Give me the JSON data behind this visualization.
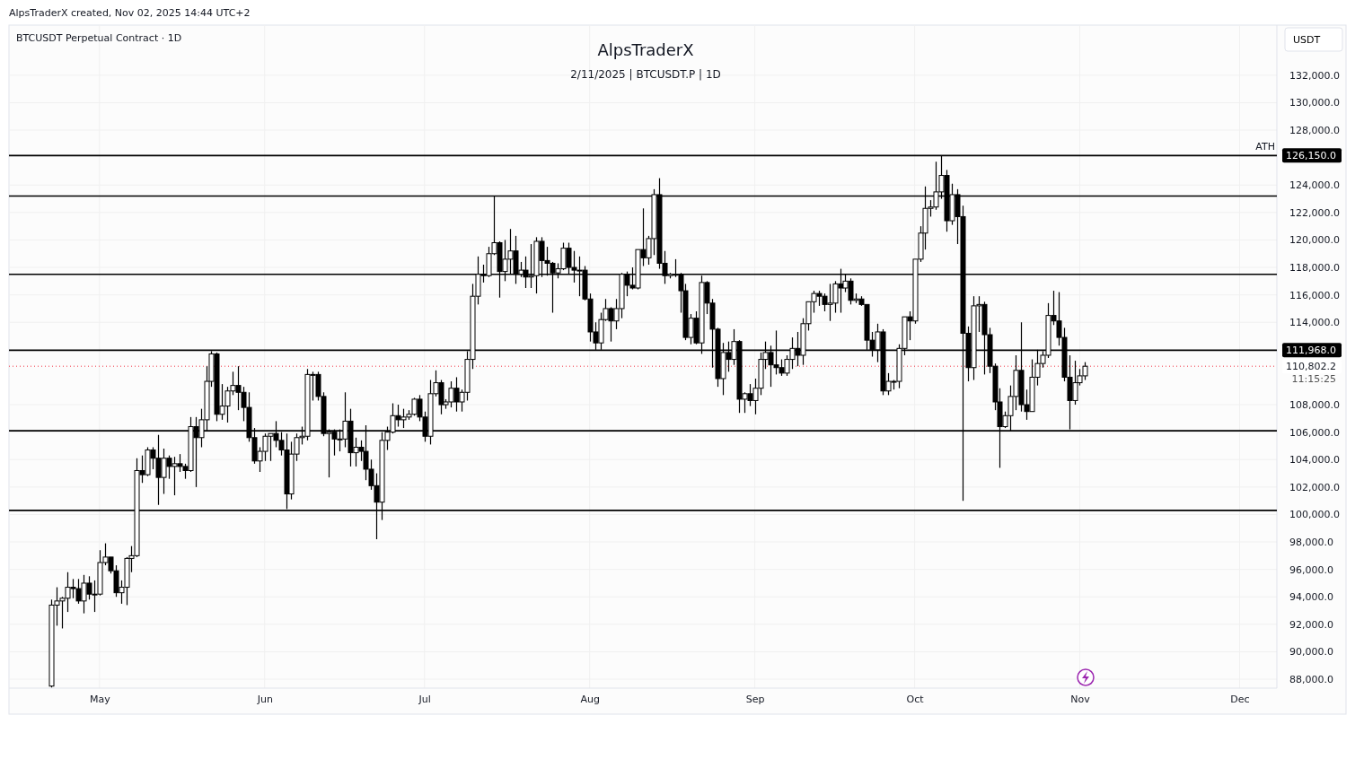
{
  "chart_data": {
    "type": "candlestick",
    "title": "AlpsTraderX",
    "subtitle": "2/11/2025 | BTCUSDT.P | 1D",
    "ylabel": "USDT",
    "annotations": [
      "AlpsTraderX created, Nov 02, 2025 14:44 UTC+2",
      "BTCUSDT Perpetual Contract · 1D",
      "ATH",
      "11:15:25"
    ],
    "xlim": [
      "2025-04-14",
      "2025-12-08"
    ],
    "xticks": [
      {
        "value": "2025-05-01",
        "label": "May"
      },
      {
        "value": "2025-06-01",
        "label": "Jun"
      },
      {
        "value": "2025-07-01",
        "label": "Jul"
      },
      {
        "value": "2025-08-01",
        "label": "Aug"
      },
      {
        "value": "2025-09-01",
        "label": "Sep"
      },
      {
        "value": "2025-10-01",
        "label": "Oct"
      },
      {
        "value": "2025-11-01",
        "label": "Nov"
      },
      {
        "value": "2025-12-01",
        "label": "Dec"
      }
    ],
    "ylim": [
      87350,
      135650
    ],
    "yticks": [
      {
        "value": 88000,
        "label": "88,000.0"
      },
      {
        "value": 90000,
        "label": "90,000.0"
      },
      {
        "value": 92000,
        "label": "92,000.0"
      },
      {
        "value": 94000,
        "label": "94,000.0"
      },
      {
        "value": 96000,
        "label": "96,000.0"
      },
      {
        "value": 98000,
        "label": "98,000.0"
      },
      {
        "value": 100000,
        "label": "100,000.0"
      },
      {
        "value": 102000,
        "label": "102,000.0"
      },
      {
        "value": 104000,
        "label": "104,000.0"
      },
      {
        "value": 106000,
        "label": "106,000.0"
      },
      {
        "value": 108000,
        "label": "108,000.0"
      },
      {
        "value": 114000,
        "label": "114,000.0"
      },
      {
        "value": 116000,
        "label": "116,000.0"
      },
      {
        "value": 118000,
        "label": "118,000.0"
      },
      {
        "value": 120000,
        "label": "120,000.0"
      },
      {
        "value": 122000,
        "label": "122,000.0"
      },
      {
        "value": 124000,
        "label": "124,000.0"
      },
      {
        "value": 128000,
        "label": "128,000.0"
      },
      {
        "value": 130000,
        "label": "130,000.0"
      },
      {
        "value": 132000,
        "label": "132,000.0"
      }
    ],
    "grid": true,
    "ref_lines": [
      {
        "axis": "y",
        "value": 126150,
        "label": "126,150.0"
      },
      {
        "axis": "y",
        "value": 123200
      },
      {
        "axis": "y",
        "value": 117500
      },
      {
        "axis": "y",
        "value": 111968,
        "label": "111,968.0"
      },
      {
        "axis": "y",
        "value": 106100
      },
      {
        "axis": "y",
        "value": 100300
      },
      {
        "axis": "y",
        "value": 110802.2,
        "label": "110,802.2",
        "color": "#f23645",
        "line_style": "dotted"
      }
    ],
    "x": [
      "2025-04-22",
      "2025-04-23",
      "2025-04-24",
      "2025-04-25",
      "2025-04-26",
      "2025-04-27",
      "2025-04-28",
      "2025-04-29",
      "2025-04-30",
      "2025-05-01",
      "2025-05-02",
      "2025-05-03",
      "2025-05-04",
      "2025-05-05",
      "2025-05-06",
      "2025-05-07",
      "2025-05-08",
      "2025-05-09",
      "2025-05-10",
      "2025-05-11",
      "2025-05-12",
      "2025-05-13",
      "2025-05-14",
      "2025-05-15",
      "2025-05-16",
      "2025-05-17",
      "2025-05-18",
      "2025-05-19",
      "2025-05-20",
      "2025-05-21",
      "2025-05-22",
      "2025-05-23",
      "2025-05-24",
      "2025-05-25",
      "2025-05-26",
      "2025-05-27",
      "2025-05-28",
      "2025-05-29",
      "2025-05-30",
      "2025-05-31",
      "2025-06-01",
      "2025-06-02",
      "2025-06-03",
      "2025-06-04",
      "2025-06-05",
      "2025-06-06",
      "2025-06-07",
      "2025-06-08",
      "2025-06-09",
      "2025-06-10",
      "2025-06-11",
      "2025-06-12",
      "2025-06-13",
      "2025-06-14",
      "2025-06-15",
      "2025-06-16",
      "2025-06-17",
      "2025-06-18",
      "2025-06-19",
      "2025-06-20",
      "2025-06-21",
      "2025-06-22",
      "2025-06-23",
      "2025-06-24",
      "2025-06-25",
      "2025-06-26",
      "2025-06-27",
      "2025-06-28",
      "2025-06-29",
      "2025-06-30",
      "2025-07-01",
      "2025-07-02",
      "2025-07-03",
      "2025-07-04",
      "2025-07-05",
      "2025-07-06",
      "2025-07-07",
      "2025-07-08",
      "2025-07-09",
      "2025-07-10",
      "2025-07-11",
      "2025-07-12",
      "2025-07-13",
      "2025-07-14",
      "2025-07-15",
      "2025-07-16",
      "2025-07-17",
      "2025-07-18",
      "2025-07-19",
      "2025-07-20",
      "2025-07-21",
      "2025-07-22",
      "2025-07-23",
      "2025-07-24",
      "2025-07-25",
      "2025-07-26",
      "2025-07-27",
      "2025-07-28",
      "2025-07-29",
      "2025-07-30",
      "2025-07-31",
      "2025-08-01",
      "2025-08-02",
      "2025-08-03",
      "2025-08-04",
      "2025-08-05",
      "2025-08-06",
      "2025-08-07",
      "2025-08-08",
      "2025-08-09",
      "2025-08-10",
      "2025-08-11",
      "2025-08-12",
      "2025-08-13",
      "2025-08-14",
      "2025-08-15",
      "2025-08-16",
      "2025-08-17",
      "2025-08-18",
      "2025-08-19",
      "2025-08-20",
      "2025-08-21",
      "2025-08-22",
      "2025-08-23",
      "2025-08-24",
      "2025-08-25",
      "2025-08-26",
      "2025-08-27",
      "2025-08-28",
      "2025-08-29",
      "2025-08-30",
      "2025-08-31",
      "2025-09-01",
      "2025-09-02",
      "2025-09-03",
      "2025-09-04",
      "2025-09-05",
      "2025-09-06",
      "2025-09-07",
      "2025-09-08",
      "2025-09-09",
      "2025-09-10",
      "2025-09-11",
      "2025-09-12",
      "2025-09-13",
      "2025-09-14",
      "2025-09-15",
      "2025-09-16",
      "2025-09-17",
      "2025-09-18",
      "2025-09-19",
      "2025-09-20",
      "2025-09-21",
      "2025-09-22",
      "2025-09-23",
      "2025-09-24",
      "2025-09-25",
      "2025-09-26",
      "2025-09-27",
      "2025-09-28",
      "2025-09-29",
      "2025-09-30",
      "2025-10-01",
      "2025-10-02",
      "2025-10-03",
      "2025-10-04",
      "2025-10-05",
      "2025-10-06",
      "2025-10-07",
      "2025-10-08",
      "2025-10-09",
      "2025-10-10",
      "2025-10-11",
      "2025-10-12",
      "2025-10-13",
      "2025-10-14",
      "2025-10-15",
      "2025-10-16",
      "2025-10-17",
      "2025-10-18",
      "2025-10-19",
      "2025-10-20",
      "2025-10-21",
      "2025-10-22",
      "2025-10-23",
      "2025-10-24",
      "2025-10-25",
      "2025-10-26",
      "2025-10-27",
      "2025-10-28",
      "2025-10-29",
      "2025-10-30",
      "2025-10-31",
      "2025-11-01",
      "2025-11-02"
    ],
    "ohlc": [
      [
        87500,
        93800,
        87400,
        93400
      ],
      [
        93400,
        94700,
        91900,
        93700
      ],
      [
        93700,
        94000,
        91700,
        93900
      ],
      [
        93900,
        95800,
        92900,
        94700
      ],
      [
        94700,
        95300,
        93900,
        94600
      ],
      [
        94600,
        95300,
        93500,
        93700
      ],
      [
        93700,
        95600,
        92800,
        95000
      ],
      [
        95000,
        95500,
        93800,
        94200
      ],
      [
        94200,
        95200,
        92900,
        94200
      ],
      [
        94200,
        97400,
        94100,
        96500
      ],
      [
        96500,
        97900,
        96300,
        96900
      ],
      [
        96900,
        96900,
        95700,
        95900
      ],
      [
        95900,
        96300,
        94000,
        94300
      ],
      [
        94300,
        95200,
        93500,
        94700
      ],
      [
        94700,
        96900,
        93400,
        96800
      ],
      [
        96800,
        97700,
        95800,
        97000
      ],
      [
        97000,
        104100,
        96900,
        103200
      ],
      [
        103200,
        104300,
        102300,
        102900
      ],
      [
        102900,
        104900,
        102800,
        104700
      ],
      [
        104700,
        104900,
        103300,
        104100
      ],
      [
        104100,
        105800,
        100700,
        102700
      ],
      [
        102700,
        104800,
        101500,
        104100
      ],
      [
        104100,
        104300,
        102600,
        103500
      ],
      [
        103500,
        104200,
        101400,
        103700
      ],
      [
        103700,
        104400,
        103100,
        103500
      ],
      [
        103500,
        103700,
        102600,
        103200
      ],
      [
        103200,
        107100,
        103100,
        106400
      ],
      [
        106400,
        107100,
        102000,
        105600
      ],
      [
        105600,
        107700,
        104900,
        106900
      ],
      [
        106900,
        110800,
        106100,
        109700
      ],
      [
        109700,
        111900,
        109300,
        111700
      ],
      [
        111700,
        111800,
        106800,
        107300
      ],
      [
        107300,
        109500,
        106900,
        107900
      ],
      [
        107900,
        109300,
        106700,
        109000
      ],
      [
        109000,
        110400,
        108700,
        109400
      ],
      [
        109400,
        110800,
        107600,
        108900
      ],
      [
        108900,
        109300,
        106800,
        107800
      ],
      [
        107800,
        108900,
        105300,
        105600
      ],
      [
        105600,
        106300,
        103700,
        103900
      ],
      [
        103900,
        104900,
        103100,
        104600
      ],
      [
        104600,
        105900,
        103900,
        105700
      ],
      [
        105700,
        105900,
        103900,
        105900
      ],
      [
        105900,
        106800,
        104900,
        105400
      ],
      [
        105400,
        106000,
        104300,
        104700
      ],
      [
        104700,
        105900,
        100400,
        101500
      ],
      [
        101500,
        105300,
        101100,
        104400
      ],
      [
        104400,
        105900,
        103900,
        105600
      ],
      [
        105600,
        106400,
        105100,
        105700
      ],
      [
        105700,
        110600,
        105400,
        110200
      ],
      [
        110200,
        110400,
        108300,
        110200
      ],
      [
        110200,
        110400,
        108300,
        108600
      ],
      [
        108600,
        108900,
        105700,
        105900
      ],
      [
        105900,
        106200,
        102700,
        106000
      ],
      [
        106000,
        106200,
        104300,
        105500
      ],
      [
        105500,
        106200,
        104600,
        105500
      ],
      [
        105500,
        108900,
        104900,
        106800
      ],
      [
        106800,
        107700,
        103500,
        104500
      ],
      [
        104500,
        105600,
        103500,
        104900
      ],
      [
        104900,
        105400,
        103900,
        104600
      ],
      [
        104600,
        106500,
        102500,
        103300
      ],
      [
        103300,
        104000,
        101800,
        102100
      ],
      [
        102100,
        103000,
        98200,
        100900
      ],
      [
        100900,
        106000,
        99600,
        105400
      ],
      [
        105400,
        106400,
        104700,
        106000
      ],
      [
        106000,
        108100,
        105900,
        107200
      ],
      [
        107200,
        108000,
        106400,
        106900
      ],
      [
        106900,
        107700,
        106300,
        107100
      ],
      [
        107100,
        107600,
        106900,
        107300
      ],
      [
        107300,
        108500,
        107200,
        108400
      ],
      [
        108400,
        108700,
        106800,
        107100
      ],
      [
        107100,
        107500,
        105300,
        105700
      ],
      [
        105700,
        109800,
        105100,
        108800
      ],
      [
        108800,
        110500,
        108600,
        109600
      ],
      [
        109600,
        109800,
        107300,
        108000
      ],
      [
        108000,
        108400,
        107700,
        108200
      ],
      [
        108200,
        109700,
        107800,
        109200
      ],
      [
        109200,
        110000,
        107500,
        108200
      ],
      [
        108200,
        109100,
        107500,
        108900
      ],
      [
        108900,
        111900,
        108300,
        111300
      ],
      [
        111300,
        116800,
        110600,
        115900
      ],
      [
        115900,
        118800,
        115300,
        117500
      ],
      [
        117500,
        118200,
        116900,
        117400
      ],
      [
        117400,
        119500,
        117300,
        119000
      ],
      [
        119000,
        123200,
        118900,
        119800
      ],
      [
        119800,
        119900,
        115800,
        117700
      ],
      [
        117700,
        120000,
        117000,
        118600
      ],
      [
        118600,
        120800,
        117500,
        119200
      ],
      [
        119200,
        120300,
        116800,
        117500
      ],
      [
        117500,
        118400,
        117300,
        117800
      ],
      [
        117800,
        118800,
        116500,
        117300
      ],
      [
        117300,
        119700,
        116500,
        117400
      ],
      [
        117400,
        120200,
        116100,
        119900
      ],
      [
        119900,
        120200,
        117300,
        118500
      ],
      [
        118500,
        119500,
        117400,
        118300
      ],
      [
        118300,
        118400,
        114700,
        117600
      ],
      [
        117600,
        118300,
        117200,
        117900
      ],
      [
        117900,
        119800,
        117800,
        119400
      ],
      [
        119400,
        119800,
        117500,
        118000
      ],
      [
        118000,
        119200,
        116900,
        117800
      ],
      [
        117800,
        118800,
        115900,
        117800
      ],
      [
        117800,
        118100,
        115600,
        115700
      ],
      [
        115700,
        116100,
        112600,
        113300
      ],
      [
        113300,
        114000,
        112000,
        112500
      ],
      [
        112500,
        114700,
        112000,
        114200
      ],
      [
        114200,
        115700,
        114100,
        115000
      ],
      [
        115000,
        115100,
        112600,
        114100
      ],
      [
        114100,
        115700,
        113500,
        115000
      ],
      [
        115000,
        117600,
        114300,
        117500
      ],
      [
        117500,
        117700,
        115900,
        116700
      ],
      [
        116700,
        118000,
        116400,
        116500
      ],
      [
        116500,
        119300,
        116400,
        119300
      ],
      [
        119300,
        122300,
        118100,
        118700
      ],
      [
        118700,
        120300,
        118200,
        120100
      ],
      [
        120100,
        123700,
        118900,
        123300
      ],
      [
        123300,
        124500,
        117900,
        118300
      ],
      [
        118300,
        119200,
        116800,
        117400
      ],
      [
        117400,
        117600,
        117200,
        117500
      ],
      [
        117500,
        118600,
        117300,
        117500
      ],
      [
        117500,
        117600,
        114700,
        116300
      ],
      [
        116300,
        116800,
        112700,
        112900
      ],
      [
        112900,
        114600,
        112400,
        114300
      ],
      [
        114300,
        114800,
        112400,
        112500
      ],
      [
        112500,
        117400,
        111700,
        116900
      ],
      [
        116900,
        117000,
        114600,
        115400
      ],
      [
        115400,
        115700,
        110700,
        113500
      ],
      [
        113500,
        113600,
        109300,
        109900
      ],
      [
        109900,
        112500,
        108700,
        111800
      ],
      [
        111800,
        112600,
        110400,
        111300
      ],
      [
        111300,
        113500,
        110900,
        112600
      ],
      [
        112600,
        112700,
        107400,
        108400
      ],
      [
        108400,
        108900,
        107400,
        108800
      ],
      [
        108800,
        109500,
        107900,
        108300
      ],
      [
        108300,
        109900,
        107300,
        109200
      ],
      [
        109200,
        111800,
        108700,
        111300
      ],
      [
        111300,
        112600,
        110600,
        111800
      ],
      [
        111800,
        112300,
        109300,
        110900
      ],
      [
        110900,
        113400,
        110200,
        110700
      ],
      [
        110700,
        111300,
        110100,
        110300
      ],
      [
        110300,
        111600,
        110100,
        111300
      ],
      [
        111300,
        112900,
        110600,
        112100
      ],
      [
        112100,
        113300,
        110800,
        111600
      ],
      [
        111600,
        114300,
        110900,
        113900
      ],
      [
        113900,
        115500,
        113400,
        115500
      ],
      [
        115500,
        116300,
        114700,
        116100
      ],
      [
        116100,
        116300,
        115200,
        115900
      ],
      [
        115900,
        116100,
        114800,
        115300
      ],
      [
        115300,
        116800,
        114100,
        115400
      ],
      [
        115400,
        117000,
        114700,
        116800
      ],
      [
        116800,
        117900,
        114700,
        116500
      ],
      [
        116500,
        117500,
        116200,
        117000
      ],
      [
        117000,
        117200,
        115300,
        115600
      ],
      [
        115600,
        116100,
        115400,
        115700
      ],
      [
        115700,
        115900,
        115200,
        115300
      ],
      [
        115300,
        115300,
        112000,
        112700
      ],
      [
        112700,
        113300,
        111500,
        112000
      ],
      [
        112000,
        113900,
        111100,
        113300
      ],
      [
        113300,
        113500,
        108700,
        109000
      ],
      [
        109000,
        110300,
        108700,
        109700
      ],
      [
        109700,
        109800,
        109100,
        109700
      ],
      [
        109700,
        112400,
        109200,
        112100
      ],
      [
        112100,
        114400,
        111600,
        114400
      ],
      [
        114400,
        114800,
        112700,
        114100
      ],
      [
        114100,
        118600,
        113900,
        118600
      ],
      [
        118600,
        121000,
        118400,
        120500
      ],
      [
        120500,
        123900,
        119300,
        122300
      ],
      [
        122300,
        122900,
        121700,
        122400
      ],
      [
        122400,
        125700,
        122200,
        123500
      ],
      [
        123500,
        126150,
        123000,
        124700
      ],
      [
        124700,
        125100,
        120600,
        121400
      ],
      [
        121400,
        124100,
        121100,
        123300
      ],
      [
        123300,
        123700,
        119700,
        121700
      ],
      [
        121700,
        122500,
        101000,
        113200
      ],
      [
        113200,
        113700,
        109700,
        110700
      ],
      [
        110700,
        115900,
        109800,
        115200
      ],
      [
        115200,
        115900,
        113300,
        115300
      ],
      [
        115300,
        115500,
        110200,
        113100
      ],
      [
        113100,
        113600,
        110300,
        110800
      ],
      [
        110800,
        111000,
        107600,
        108200
      ],
      [
        108200,
        109200,
        103400,
        106400
      ],
      [
        106400,
        107500,
        106300,
        107200
      ],
      [
        107200,
        109400,
        106100,
        108600
      ],
      [
        108600,
        111600,
        107600,
        110500
      ],
      [
        110500,
        114000,
        107500,
        108000
      ],
      [
        108000,
        109100,
        106900,
        107500
      ],
      [
        107500,
        111300,
        107500,
        110000
      ],
      [
        110000,
        112000,
        109400,
        111000
      ],
      [
        111000,
        111900,
        110700,
        111600
      ],
      [
        111600,
        115400,
        111400,
        114500
      ],
      [
        114500,
        116300,
        113800,
        114100
      ],
      [
        114100,
        116200,
        112300,
        112900
      ],
      [
        112900,
        113600,
        109700,
        110000
      ],
      [
        110000,
        111600,
        106200,
        108300
      ],
      [
        108300,
        111200,
        108000,
        109600
      ],
      [
        109600,
        110600,
        109400,
        110100
      ],
      [
        110100,
        111100,
        109800,
        110800
      ]
    ]
  }
}
